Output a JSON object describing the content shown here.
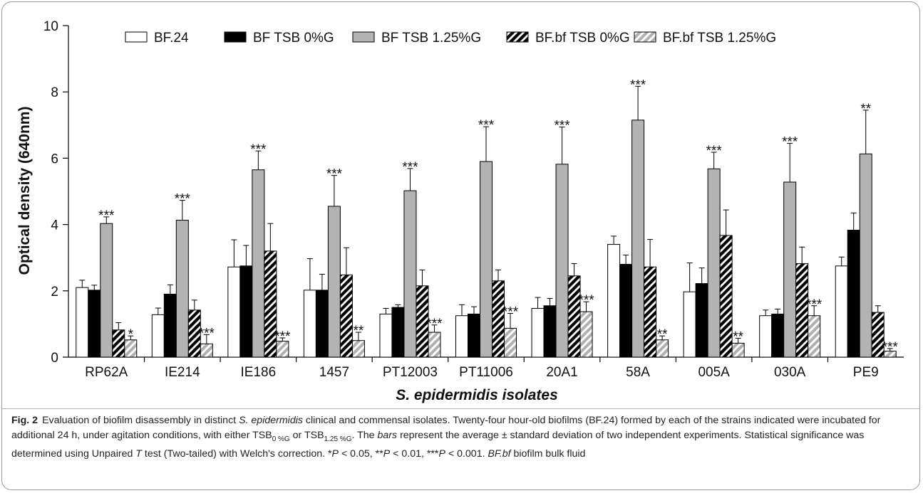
{
  "chart_data": {
    "type": "bar",
    "ylabel": "Optical density (640nm)",
    "xlabel": "S. epidermidis isolates",
    "ylim": [
      0,
      10
    ],
    "yticks": [
      0,
      2,
      4,
      6,
      8,
      10
    ],
    "legend_position": "top",
    "categories": [
      "RP62A",
      "IE214",
      "IE186",
      "1457",
      "PT12003",
      "PT11006",
      "20A1",
      "58A",
      "005A",
      "030A",
      "PE9"
    ],
    "series": [
      {
        "name": "BF.24",
        "style": "white",
        "values": [
          2.1,
          1.28,
          2.72,
          2.02,
          1.3,
          1.25,
          1.47,
          3.4,
          1.97,
          1.25,
          2.75
        ],
        "errors": [
          0.22,
          0.2,
          0.82,
          0.95,
          0.17,
          0.33,
          0.33,
          0.25,
          0.87,
          0.17,
          0.27
        ],
        "significance": [
          "",
          "",
          "",
          "",
          "",
          "",
          "",
          "",
          "",
          "",
          ""
        ]
      },
      {
        "name": "BF TSB 0%G",
        "style": "black",
        "values": [
          2.02,
          1.9,
          2.75,
          2.02,
          1.5,
          1.3,
          1.55,
          2.8,
          2.22,
          1.3,
          3.83
        ],
        "errors": [
          0.15,
          0.28,
          0.62,
          0.48,
          0.08,
          0.22,
          0.22,
          0.28,
          0.47,
          0.15,
          0.52
        ],
        "significance": [
          "",
          "",
          "",
          "",
          "",
          "",
          "",
          "",
          "",
          "",
          ""
        ]
      },
      {
        "name": "BF TSB 1.25%G",
        "style": "gray",
        "values": [
          4.03,
          4.13,
          5.65,
          4.55,
          5.02,
          5.9,
          5.82,
          7.15,
          5.68,
          5.28,
          6.13
        ],
        "errors": [
          0.2,
          0.6,
          0.57,
          0.93,
          0.67,
          1.05,
          1.12,
          1.02,
          0.5,
          1.17,
          1.32
        ],
        "significance": [
          "***",
          "***",
          "***",
          "***",
          "***",
          "***",
          "***",
          "***",
          "***",
          "***",
          "**"
        ]
      },
      {
        "name": "BF.bf  TSB 0%G",
        "style": "black-striped",
        "values": [
          0.82,
          1.42,
          3.2,
          2.48,
          2.15,
          2.3,
          2.45,
          2.72,
          3.67,
          2.82,
          1.35
        ],
        "errors": [
          0.22,
          0.3,
          0.83,
          0.82,
          0.48,
          0.33,
          0.37,
          0.83,
          0.77,
          0.5,
          0.2
        ],
        "significance": [
          "",
          "",
          "",
          "",
          "",
          "",
          "",
          "",
          "",
          "",
          ""
        ]
      },
      {
        "name": "BF.bf TSB 1.25%G",
        "style": "gray-striped",
        "values": [
          0.52,
          0.4,
          0.48,
          0.5,
          0.75,
          0.87,
          1.37,
          0.52,
          0.42,
          1.25,
          0.18
        ],
        "errors": [
          0.12,
          0.28,
          0.1,
          0.25,
          0.22,
          0.45,
          0.3,
          0.12,
          0.15,
          0.3,
          0.08
        ],
        "significance": [
          "*",
          "***",
          "***",
          "**",
          "***",
          "***",
          "***",
          "**",
          "**",
          "***",
          "***"
        ]
      }
    ]
  },
  "caption": {
    "label": "Fig. 2",
    "parts": [
      {
        "t": "Evaluation of biofilm disassembly in distinct "
      },
      {
        "t": "S. epidermidis",
        "i": true
      },
      {
        "t": " clinical and commensal isolates. Twenty-four hour-old biofilms (BF.24) formed by each of the strains indicated were incubated for additional 24 h, under agitation conditions, with either TSB"
      },
      {
        "t": "0 %G",
        "sub": true
      },
      {
        "t": " or TSB"
      },
      {
        "t": "1.25 %G",
        "sub": true
      },
      {
        "t": ". The "
      },
      {
        "t": "bars",
        "i": true
      },
      {
        "t": " represent the average ± standard deviation of two independent experiments. Statistical significance was determined using Unpaired "
      },
      {
        "t": "T",
        "i": true
      },
      {
        "t": " test (Two-tailed) with Welch's correction. *"
      },
      {
        "t": "P",
        "i": true
      },
      {
        "t": " < 0.05, **"
      },
      {
        "t": "P",
        "i": true
      },
      {
        "t": " < 0.01, ***"
      },
      {
        "t": "P",
        "i": true
      },
      {
        "t": " < 0.001. "
      },
      {
        "t": "BF.bf",
        "i": true
      },
      {
        "t": " biofilm bulk fluid"
      }
    ]
  }
}
